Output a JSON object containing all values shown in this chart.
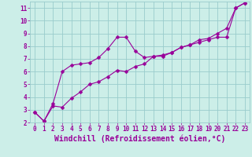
{
  "line1_x": [
    0,
    1,
    2,
    3,
    4,
    5,
    6,
    7,
    8,
    9,
    10,
    11,
    12,
    13,
    14,
    15,
    16,
    17,
    18,
    19,
    20,
    21,
    22,
    23
  ],
  "line1_y": [
    2.8,
    2.1,
    3.3,
    3.2,
    3.9,
    4.4,
    5.0,
    5.2,
    5.6,
    6.1,
    6.0,
    6.4,
    6.6,
    7.2,
    7.3,
    7.5,
    7.9,
    8.1,
    8.5,
    8.6,
    9.0,
    9.4,
    11.0,
    11.4
  ],
  "line2_x": [
    0,
    1,
    2,
    3,
    4,
    5,
    6,
    7,
    8,
    9,
    10,
    11,
    12,
    13,
    14,
    15,
    16,
    17,
    18,
    19,
    20,
    21,
    22,
    23
  ],
  "line2_y": [
    2.8,
    2.1,
    3.5,
    6.0,
    6.5,
    6.6,
    6.7,
    7.1,
    7.8,
    8.7,
    8.7,
    7.6,
    7.1,
    7.2,
    7.2,
    7.5,
    7.9,
    8.1,
    8.3,
    8.5,
    8.7,
    8.7,
    11.0,
    11.4
  ],
  "line_color": "#990099",
  "marker": "D",
  "markersize": 2.5,
  "xlabel": "Windchill (Refroidissement éolien,°C)",
  "xlim": [
    -0.5,
    23.5
  ],
  "ylim": [
    2,
    11.5
  ],
  "yticks": [
    2,
    3,
    4,
    5,
    6,
    7,
    8,
    9,
    10,
    11
  ],
  "xticks": [
    0,
    1,
    2,
    3,
    4,
    5,
    6,
    7,
    8,
    9,
    10,
    11,
    12,
    13,
    14,
    15,
    16,
    17,
    18,
    19,
    20,
    21,
    22,
    23
  ],
  "bg_color": "#cceee8",
  "grid_color": "#99cccc",
  "tick_fontsize": 5.5,
  "xlabel_fontsize": 7.0
}
